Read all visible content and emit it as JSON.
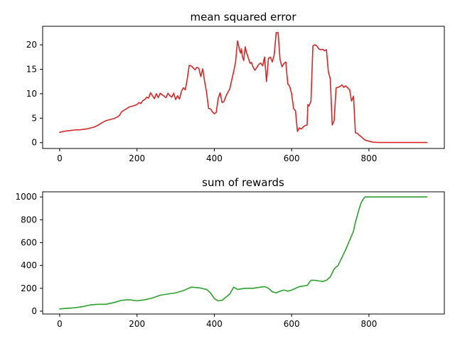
{
  "chart_data": [
    {
      "type": "line",
      "title": "mean squared error",
      "xlabel": "",
      "ylabel": "",
      "xlim": [
        -44,
        995
      ],
      "ylim": [
        -1.2,
        23.8
      ],
      "xticks": [
        0,
        200,
        400,
        600,
        800
      ],
      "yticks": [
        0,
        5,
        10,
        15,
        20
      ],
      "grid": false,
      "color": "#d62728",
      "series": [
        {
          "x": [
            0,
            5,
            10,
            20,
            30,
            40,
            50,
            60,
            70,
            80,
            90,
            100,
            110,
            120,
            130,
            140,
            150,
            155,
            160,
            170,
            180,
            190,
            200,
            205,
            210,
            215,
            220,
            225,
            230,
            235,
            240,
            245,
            250,
            255,
            260,
            265,
            270,
            275,
            280,
            285,
            290,
            295,
            300,
            305,
            310,
            315,
            320,
            325,
            330,
            335,
            340,
            345,
            350,
            355,
            360,
            365,
            370,
            375,
            380,
            385,
            390,
            395,
            400,
            405,
            410,
            415,
            420,
            425,
            430,
            435,
            440,
            445,
            450,
            455,
            460,
            462,
            465,
            468,
            470,
            473,
            476,
            480,
            483,
            486,
            490,
            493,
            496,
            500,
            505,
            510,
            515,
            520,
            525,
            530,
            535,
            540,
            545,
            550,
            555,
            560,
            565,
            570,
            575,
            580,
            585,
            590,
            595,
            600,
            605,
            610,
            615,
            620,
            625,
            630,
            635,
            640,
            642,
            645,
            650,
            655,
            660,
            665,
            670,
            675,
            680,
            685,
            690,
            695,
            700,
            705,
            710,
            715,
            720,
            725,
            730,
            735,
            740,
            745,
            750,
            755,
            760,
            765,
            770,
            775,
            780,
            790,
            800,
            810,
            820,
            830,
            900,
            950
          ],
          "y": [
            2.1,
            2.2,
            2.3,
            2.4,
            2.5,
            2.6,
            2.6,
            2.7,
            2.8,
            3.0,
            3.2,
            3.6,
            4.1,
            4.5,
            4.7,
            4.9,
            5.3,
            5.6,
            6.3,
            6.8,
            7.3,
            7.5,
            7.8,
            8.2,
            8.0,
            8.6,
            8.8,
            9.3,
            9.1,
            10.2,
            9.6,
            9.0,
            10.0,
            9.2,
            10.1,
            9.8,
            9.5,
            9.2,
            10.1,
            9.6,
            9.3,
            10.1,
            8.8,
            9.6,
            8.9,
            10.5,
            11.2,
            10.8,
            13.0,
            15.8,
            15.7,
            15.3,
            14.9,
            15.4,
            15.2,
            13.5,
            15.1,
            12.5,
            10.3,
            7.0,
            6.9,
            6.3,
            5.9,
            6.2,
            9.0,
            10.2,
            8.2,
            8.4,
            9.5,
            10.3,
            11.0,
            12.8,
            14.5,
            16.5,
            20.8,
            20.2,
            19.0,
            18.3,
            19.2,
            17.5,
            16.8,
            19.6,
            18.5,
            17.8,
            16.8,
            16.2,
            16.4,
            15.5,
            14.8,
            15.4,
            16.0,
            16.3,
            15.7,
            17.5,
            12.5,
            17.2,
            17.5,
            16.5,
            18.0,
            22.5,
            22.5,
            17.0,
            15.5,
            16.2,
            16.5,
            12.0,
            11.5,
            10.0,
            7.0,
            6.5,
            2.3,
            3.0,
            2.8,
            3.2,
            3.5,
            3.6,
            7.8,
            7.5,
            8.5,
            19.8,
            20.0,
            19.8,
            19.2,
            19.0,
            19.1,
            18.8,
            19.0,
            14.5,
            13.0,
            3.6,
            4.5,
            11.2,
            11.3,
            11.5,
            11.8,
            11.3,
            11.6,
            11.2,
            10.8,
            8.5,
            9.5,
            2.0,
            1.9,
            1.5,
            1.2,
            0.5,
            0.3,
            0.1,
            0.05,
            0.02,
            0.02,
            0.02
          ]
        }
      ]
    },
    {
      "type": "line",
      "title": "sum of rewards",
      "xlabel": "",
      "ylabel": "",
      "xlim": [
        -44,
        995
      ],
      "ylim": [
        -25,
        1045
      ],
      "xticks": [
        0,
        200,
        400,
        600,
        800
      ],
      "yticks": [
        0,
        200,
        400,
        600,
        800,
        1000
      ],
      "grid": false,
      "color": "#2ca02c",
      "series": [
        {
          "x": [
            0,
            20,
            40,
            60,
            80,
            100,
            120,
            140,
            160,
            180,
            200,
            220,
            240,
            260,
            280,
            300,
            320,
            340,
            360,
            380,
            390,
            400,
            410,
            420,
            440,
            450,
            460,
            480,
            500,
            520,
            530,
            540,
            550,
            560,
            570,
            580,
            590,
            600,
            620,
            640,
            650,
            660,
            670,
            680,
            690,
            700,
            710,
            720,
            730,
            740,
            750,
            760,
            765,
            770,
            775,
            780,
            785,
            790,
            800,
            850,
            900,
            950
          ],
          "y": [
            20,
            25,
            30,
            40,
            55,
            60,
            60,
            75,
            95,
            100,
            90,
            100,
            115,
            140,
            150,
            160,
            180,
            210,
            205,
            190,
            160,
            110,
            90,
            95,
            150,
            210,
            190,
            200,
            200,
            210,
            215,
            200,
            170,
            160,
            175,
            185,
            175,
            185,
            215,
            225,
            270,
            270,
            265,
            260,
            270,
            300,
            370,
            400,
            470,
            540,
            620,
            700,
            780,
            840,
            900,
            950,
            980,
            1000,
            1000,
            1000,
            1000,
            1000
          ]
        }
      ]
    }
  ]
}
